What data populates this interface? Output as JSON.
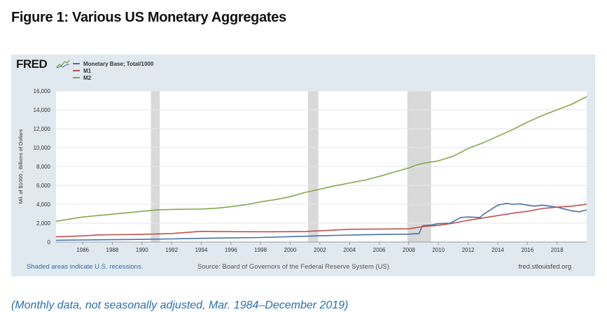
{
  "figure_title": "Figure 1: Various US Monetary Aggregates",
  "logo_text": "FRED",
  "footer": {
    "left": "Shaded areas indicate U.S. recessions.",
    "source": "Source: Board of Governors of the Federal Reserve System (US)",
    "right": "fred.stlouisfed.org"
  },
  "caption": "(Monthly data, not seasonally adjusted, Mar. 1984–December 2019)",
  "colors": {
    "monetary_base": "#4572a7",
    "m1": "#c0504d",
    "m2": "#89a54e",
    "recession": "#d9d9d9",
    "background": "#e1e9f0"
  },
  "chart_data": {
    "type": "line",
    "ylabel": "Mil. of $1000 , Billions of Dollars",
    "xlabel": "",
    "xlim": [
      1984.2,
      2020.0
    ],
    "ylim": [
      0,
      16000
    ],
    "x_ticks": [
      1986,
      1988,
      1990,
      1992,
      1994,
      1996,
      1998,
      2000,
      2002,
      2004,
      2006,
      2008,
      2010,
      2012,
      2014,
      2016,
      2018
    ],
    "x_tick_labels": [
      "1986",
      "1988",
      "1990",
      "1992",
      "1994",
      "1996",
      "1998",
      "2000",
      "2002",
      "2004",
      "2006",
      "2008",
      "2010",
      "2012",
      "2014",
      "2016",
      "2018"
    ],
    "y_ticks": [
      0,
      2000,
      4000,
      6000,
      8000,
      10000,
      12000,
      14000,
      16000
    ],
    "y_tick_labels": [
      "0",
      "2,000",
      "4,000",
      "6,000",
      "8,000",
      "10,000",
      "12,000",
      "14,000",
      "16,000"
    ],
    "grid": true,
    "legend_position": "top-left",
    "recessions": [
      [
        1990.6,
        1991.2
      ],
      [
        2001.2,
        2001.9
      ],
      [
        2007.9,
        2009.5
      ]
    ],
    "series": [
      {
        "name": "Monetary Base; Total/1000",
        "points": [
          [
            1984.2,
            190
          ],
          [
            1986,
            220
          ],
          [
            1988,
            250
          ],
          [
            1990,
            280
          ],
          [
            1992,
            330
          ],
          [
            1994,
            390
          ],
          [
            1996,
            440
          ],
          [
            1998,
            480
          ],
          [
            2000,
            570
          ],
          [
            2002,
            660
          ],
          [
            2004,
            740
          ],
          [
            2006,
            800
          ],
          [
            2008,
            840
          ],
          [
            2008.7,
            900
          ],
          [
            2008.9,
            1700
          ],
          [
            2009,
            1750
          ],
          [
            2009.5,
            1800
          ],
          [
            2010,
            1950
          ],
          [
            2010.8,
            2000
          ],
          [
            2011.5,
            2600
          ],
          [
            2012,
            2650
          ],
          [
            2012.8,
            2600
          ],
          [
            2013,
            2900
          ],
          [
            2013.5,
            3400
          ],
          [
            2014,
            3900
          ],
          [
            2014.6,
            4100
          ],
          [
            2015,
            4000
          ],
          [
            2015.5,
            4050
          ],
          [
            2016,
            3900
          ],
          [
            2016.5,
            3800
          ],
          [
            2017,
            3900
          ],
          [
            2017.5,
            3800
          ],
          [
            2018,
            3700
          ],
          [
            2018.5,
            3500
          ],
          [
            2019,
            3300
          ],
          [
            2019.5,
            3200
          ],
          [
            2020,
            3400
          ]
        ]
      },
      {
        "name": "M1",
        "points": [
          [
            1984.2,
            550
          ],
          [
            1986,
            650
          ],
          [
            1987,
            750
          ],
          [
            1988,
            780
          ],
          [
            1990,
            810
          ],
          [
            1992,
            900
          ],
          [
            1994,
            1130
          ],
          [
            1996,
            1100
          ],
          [
            1998,
            1090
          ],
          [
            2000,
            1100
          ],
          [
            2001,
            1120
          ],
          [
            2002,
            1190
          ],
          [
            2004,
            1350
          ],
          [
            2006,
            1380
          ],
          [
            2008,
            1400
          ],
          [
            2009,
            1650
          ],
          [
            2010,
            1760
          ],
          [
            2011,
            2000
          ],
          [
            2012,
            2300
          ],
          [
            2013,
            2550
          ],
          [
            2014,
            2800
          ],
          [
            2015,
            3050
          ],
          [
            2016,
            3250
          ],
          [
            2017,
            3550
          ],
          [
            2018,
            3700
          ],
          [
            2019,
            3800
          ],
          [
            2020,
            4000
          ]
        ]
      },
      {
        "name": "M2",
        "points": [
          [
            1984.2,
            2200
          ],
          [
            1985,
            2400
          ],
          [
            1986,
            2650
          ],
          [
            1987,
            2800
          ],
          [
            1988,
            2950
          ],
          [
            1989,
            3100
          ],
          [
            1990,
            3250
          ],
          [
            1991,
            3400
          ],
          [
            1992,
            3450
          ],
          [
            1993,
            3480
          ],
          [
            1994,
            3500
          ],
          [
            1995,
            3580
          ],
          [
            1996,
            3750
          ],
          [
            1997,
            3950
          ],
          [
            1998,
            4250
          ],
          [
            1999,
            4500
          ],
          [
            2000,
            4800
          ],
          [
            2001,
            5250
          ],
          [
            2002,
            5600
          ],
          [
            2003,
            5950
          ],
          [
            2004,
            6250
          ],
          [
            2005,
            6550
          ],
          [
            2006,
            6950
          ],
          [
            2007,
            7400
          ],
          [
            2008,
            7850
          ],
          [
            2008.5,
            8150
          ],
          [
            2009,
            8350
          ],
          [
            2010,
            8600
          ],
          [
            2011,
            9100
          ],
          [
            2011.5,
            9500
          ],
          [
            2012,
            9900
          ],
          [
            2013,
            10500
          ],
          [
            2014,
            11200
          ],
          [
            2015,
            11900
          ],
          [
            2016,
            12700
          ],
          [
            2017,
            13400
          ],
          [
            2018,
            14000
          ],
          [
            2019,
            14600
          ],
          [
            2020,
            15400
          ]
        ]
      }
    ]
  }
}
